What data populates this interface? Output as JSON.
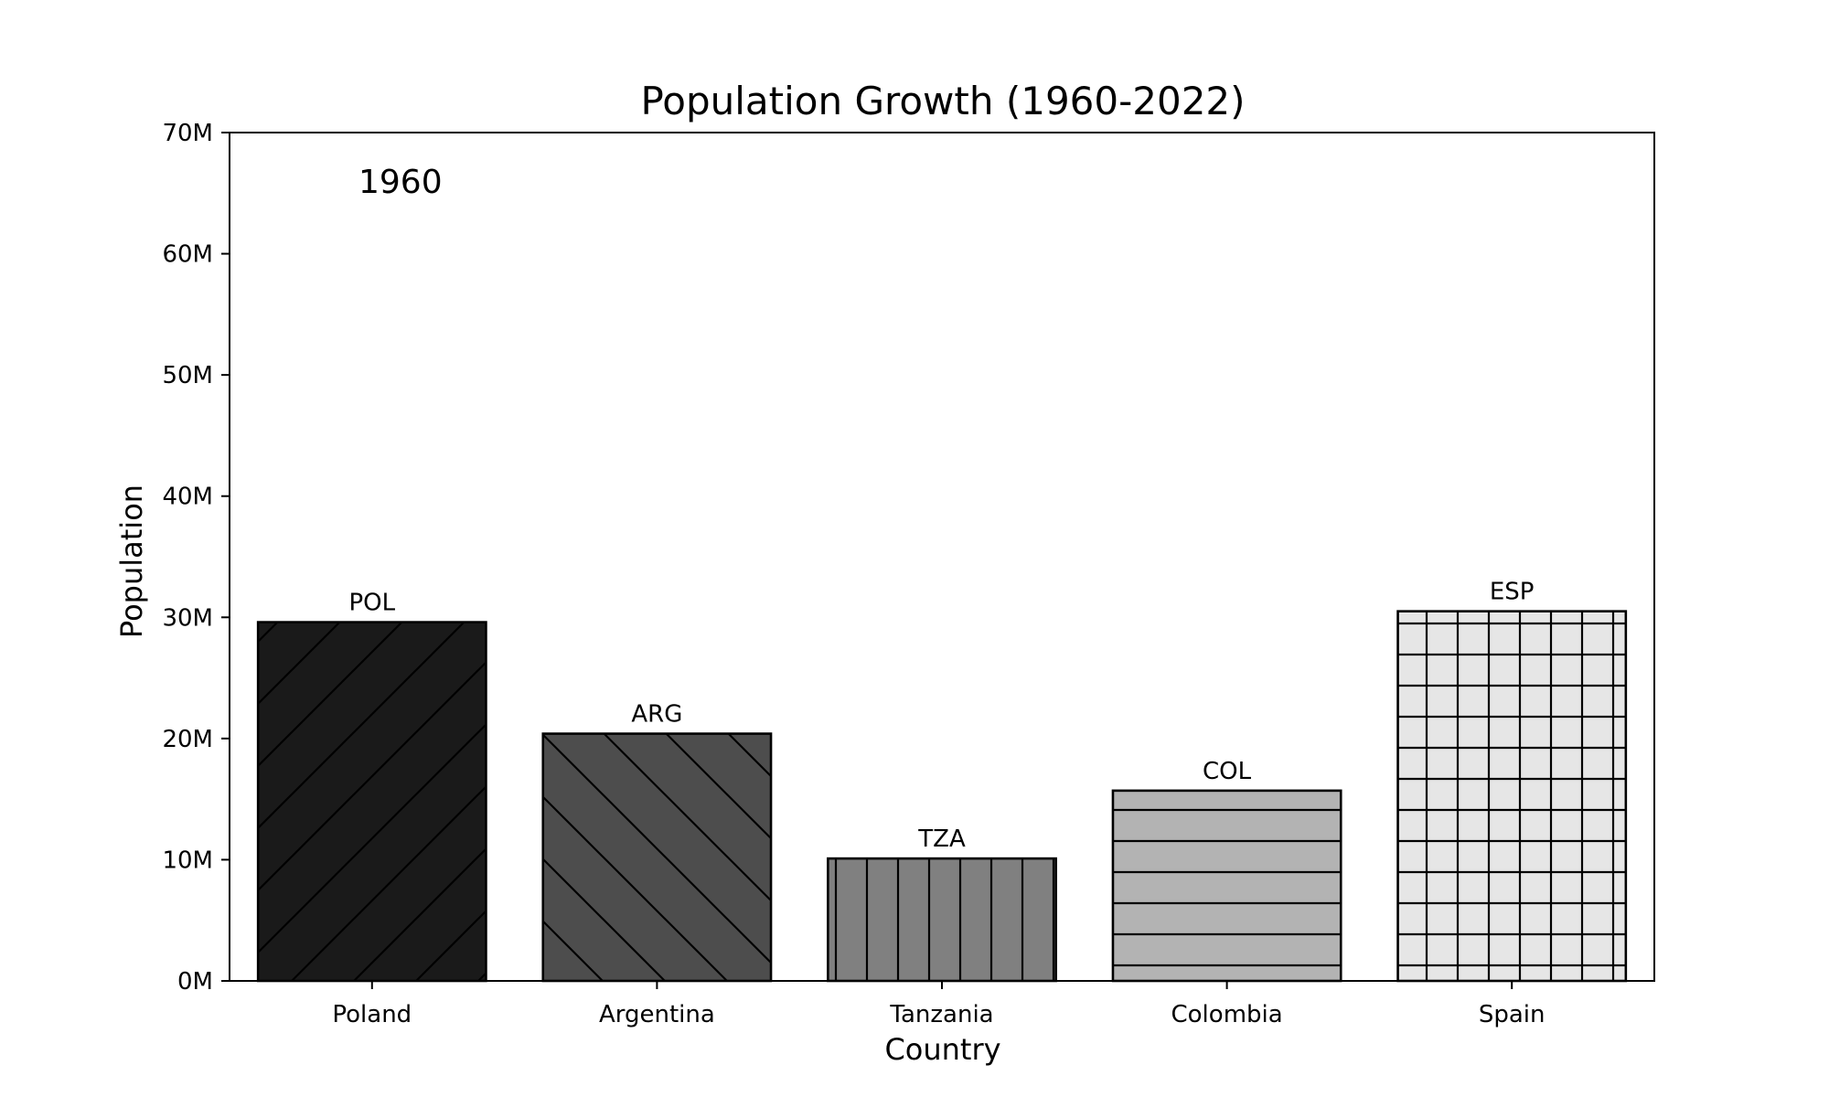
{
  "chart_data": {
    "type": "bar",
    "title": "Population Growth (1960-2022)",
    "xlabel": "Country",
    "ylabel": "Population",
    "annotation": "1960",
    "ylim": [
      0,
      70000000
    ],
    "yticks": [
      0,
      10000000,
      20000000,
      30000000,
      40000000,
      50000000,
      60000000,
      70000000
    ],
    "ytick_labels": [
      "0M",
      "10M",
      "20M",
      "30M",
      "40M",
      "50M",
      "60M",
      "70M"
    ],
    "categories": [
      "Poland",
      "Argentina",
      "Tanzania",
      "Colombia",
      "Spain"
    ],
    "codes": [
      "POL",
      "ARG",
      "TZA",
      "COL",
      "ESP"
    ],
    "values": [
      29600000,
      20400000,
      10100000,
      15700000,
      30500000
    ],
    "colors": [
      "#1a1a1a",
      "#4d4d4d",
      "#808080",
      "#b3b3b3",
      "#e6e6e6"
    ],
    "hatches": [
      "diagonal-forward",
      "diagonal-back",
      "vertical",
      "horizontal",
      "grid"
    ],
    "grid": false,
    "legend": "none"
  }
}
